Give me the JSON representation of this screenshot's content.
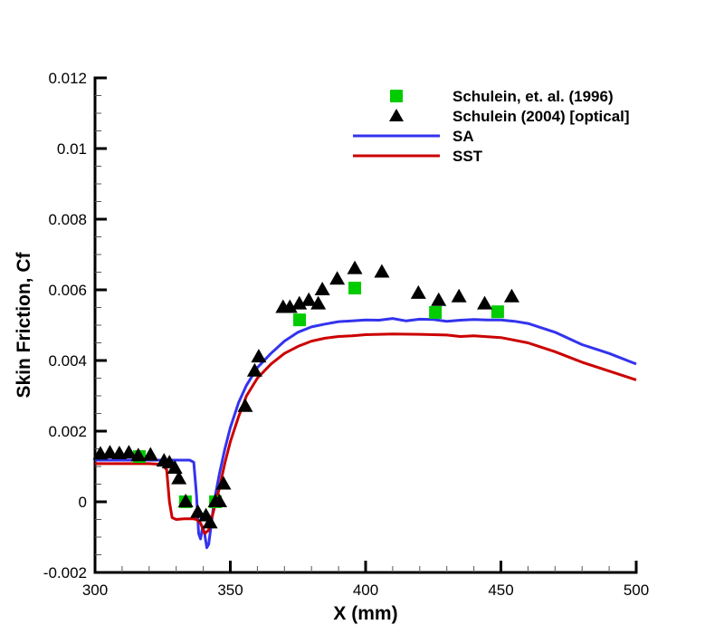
{
  "chart_data": {
    "type": "line",
    "title": "",
    "xlabel": "X (mm)",
    "ylabel": "Skin Friction, Cf",
    "xlim": [
      300,
      500
    ],
    "ylim": [
      -0.002,
      0.012
    ],
    "xticks": [
      300,
      350,
      400,
      450,
      500
    ],
    "xtick_labels": [
      "300",
      "350",
      "400",
      "450",
      "500"
    ],
    "yticks": [
      -0.002,
      0,
      0.002,
      0.004,
      0.006,
      0.008,
      0.01,
      0.012
    ],
    "ytick_labels": [
      "-0.002",
      "0",
      "0.002",
      "0.004",
      "0.006",
      "0.008",
      "0.01",
      "0.012"
    ],
    "x_minor_per_major": 5,
    "y_minor_per_major": 4,
    "grid": false,
    "legend_position": "top-right",
    "series": [
      {
        "name": "Schulein, et. al. (1996)",
        "kind": "scatter",
        "marker": "square",
        "color": "#00cc00",
        "x": [
          316.4,
          333.4,
          344.5,
          375.6,
          396.0,
          425.8,
          448.8
        ],
        "y": [
          0.00128,
          0.0,
          0.0,
          0.00515,
          0.00605,
          0.00536,
          0.00538
        ]
      },
      {
        "name": "Schulein (2004) [optical]",
        "kind": "scatter",
        "marker": "triangle",
        "color": "#000000",
        "x": [
          302.0,
          305.5,
          309.0,
          312.5,
          316.0,
          320.5,
          325.5,
          327.5,
          329.5,
          331.0,
          333.5,
          338.0,
          341.0,
          342.5,
          344.5,
          346.0,
          347.5,
          355.5,
          359.0,
          360.5,
          369.5,
          372.0,
          375.5,
          379.0,
          382.5,
          384.0,
          389.5,
          396.0,
          406.0,
          419.5,
          427.0,
          434.5,
          444.0,
          454.0
        ],
        "y": [
          0.00135,
          0.00138,
          0.00136,
          0.00138,
          0.0013,
          0.00132,
          0.00115,
          0.0011,
          0.00095,
          0.00065,
          0.0,
          -0.0003,
          -0.0004,
          -0.0006,
          0.0,
          0.0,
          0.0005,
          0.0027,
          0.0037,
          0.0041,
          0.0055,
          0.0055,
          0.0056,
          0.0057,
          0.0056,
          0.006,
          0.0063,
          0.0066,
          0.0065,
          0.0059,
          0.0057,
          0.0058,
          0.0056,
          0.0058
        ]
      },
      {
        "name": "SA",
        "kind": "line",
        "color": "#3333ee",
        "x": [
          300,
          310,
          320,
          330,
          335,
          336.5,
          337.5,
          338.3,
          339,
          339.8,
          340.5,
          341.3,
          342,
          343,
          344,
          346,
          348,
          350,
          353,
          356,
          360,
          365,
          370,
          375,
          380,
          385,
          390,
          395,
          400,
          405,
          410,
          415,
          420,
          425,
          430,
          435,
          440,
          445,
          450,
          455,
          460,
          470,
          480,
          490,
          500
        ],
        "y": [
          0.00118,
          0.00118,
          0.00118,
          0.00118,
          0.00118,
          0.00112,
          0.0002,
          -0.0009,
          -0.00105,
          -0.0007,
          -0.0009,
          -0.0013,
          -0.0012,
          -0.0006,
          0.0,
          0.0008,
          0.0015,
          0.0021,
          0.0028,
          0.0033,
          0.0038,
          0.0042,
          0.00455,
          0.0048,
          0.00495,
          0.00503,
          0.0051,
          0.00512,
          0.00515,
          0.00514,
          0.00519,
          0.00512,
          0.00517,
          0.00516,
          0.00511,
          0.00514,
          0.00516,
          0.00515,
          0.00515,
          0.00511,
          0.00505,
          0.0048,
          0.00445,
          0.0042,
          0.0039
        ]
      },
      {
        "name": "SST",
        "kind": "line",
        "color": "#cc0000",
        "x": [
          300,
          310,
          320,
          325,
          326.5,
          327.5,
          328.5,
          330,
          333,
          336,
          337.5,
          339,
          340.5,
          342,
          344,
          346,
          348,
          350,
          353,
          356,
          360,
          365,
          370,
          375,
          380,
          385,
          390,
          395,
          400,
          410,
          420,
          430,
          435,
          440,
          450,
          460,
          470,
          480,
          490,
          500
        ],
        "y": [
          0.00108,
          0.00108,
          0.00108,
          0.00106,
          0.0009,
          0.0,
          -0.00045,
          -0.0005,
          -0.00048,
          -0.00048,
          -0.0005,
          -0.0006,
          -0.0009,
          -0.0008,
          -0.0002,
          0.0004,
          0.0011,
          0.0017,
          0.0024,
          0.003,
          0.0035,
          0.0039,
          0.0042,
          0.0044,
          0.00455,
          0.00463,
          0.00468,
          0.0047,
          0.00473,
          0.00475,
          0.00474,
          0.00472,
          0.00468,
          0.0047,
          0.00465,
          0.0045,
          0.00425,
          0.00395,
          0.0037,
          0.00345
        ]
      }
    ]
  }
}
